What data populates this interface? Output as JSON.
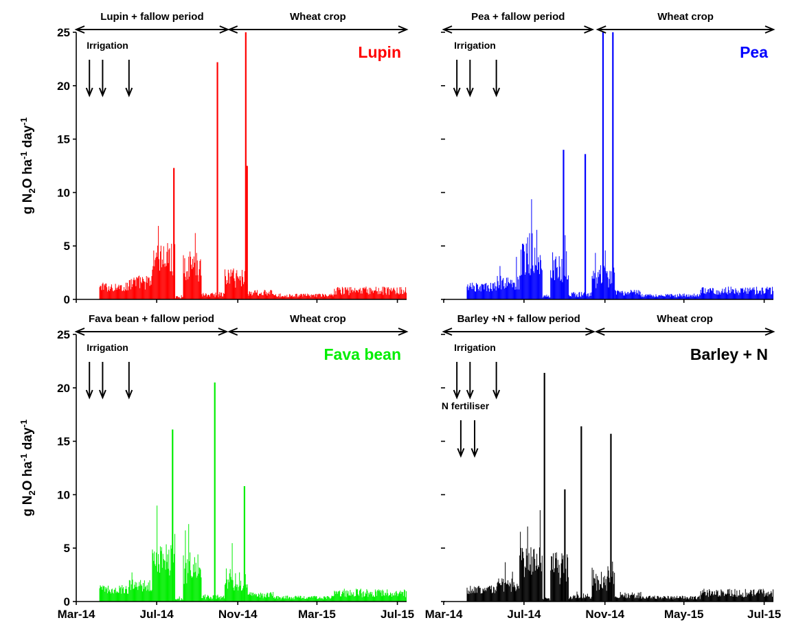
{
  "chart_data": [
    {
      "type": "bar",
      "title": "Lupin",
      "title_color": "#ff0000",
      "series_color": "#ff0000",
      "ylabel": "g N2O ha-1 day-1",
      "ylim": [
        0,
        25
      ],
      "yticks": [
        0,
        5,
        10,
        15,
        20,
        25
      ],
      "xlim": [
        "2014-03-01",
        "2015-07-15"
      ],
      "xticks": [],
      "periods": [
        {
          "label": "Lupin + fallow period",
          "start": "2014-03-01",
          "end": "2014-10-17"
        },
        {
          "label": "Wheat crop",
          "start": "2014-10-19",
          "end": "2015-07-15"
        }
      ],
      "annotations": [
        {
          "label": "Irrigation",
          "dates": [
            "2014-03-21",
            "2014-04-10",
            "2014-05-20"
          ]
        }
      ],
      "peaks": [
        {
          "date": "2014-07-27",
          "value": 12.3
        },
        {
          "date": "2014-10-01",
          "value": 22.2
        },
        {
          "date": "2014-11-13",
          "value": 25.0
        },
        {
          "date": "2014-11-15",
          "value": 12.5
        }
      ]
    },
    {
      "type": "bar",
      "title": "Pea",
      "title_color": "#0000ff",
      "series_color": "#0000ff",
      "ylabel": "",
      "ylim": [
        0,
        25
      ],
      "yticks": [
        0,
        5,
        10,
        15,
        20,
        25
      ],
      "xlim": [
        "2014-03-01",
        "2015-07-15"
      ],
      "xticks": [],
      "periods": [
        {
          "label": "Pea + fallow period",
          "start": "2014-03-01",
          "end": "2014-10-13"
        },
        {
          "label": "Wheat crop",
          "start": "2014-10-21",
          "end": "2015-07-15"
        }
      ],
      "annotations": [
        {
          "label": "Irrigation",
          "dates": [
            "2014-03-21",
            "2014-04-10",
            "2014-05-20"
          ]
        }
      ],
      "peaks": [
        {
          "date": "2014-08-30",
          "value": 14.0
        },
        {
          "date": "2014-10-02",
          "value": 13.6
        },
        {
          "date": "2014-10-29",
          "value": 25.0
        },
        {
          "date": "2014-11-13",
          "value": 25.0
        }
      ]
    },
    {
      "type": "bar",
      "title": "Fava bean",
      "title_color": "#00ee00",
      "series_color": "#00ee00",
      "ylabel": "g N2O ha-1 day-1",
      "ylim": [
        0,
        25
      ],
      "yticks": [
        0,
        5,
        10,
        15,
        20,
        25
      ],
      "xlim": [
        "2014-03-01",
        "2015-07-15"
      ],
      "xticks": [
        "Mar-14",
        "Jul-14",
        "Nov-14",
        "Mar-15",
        "Jul-15"
      ],
      "periods": [
        {
          "label": "Fava bean + fallow period",
          "start": "2014-03-01",
          "end": "2014-10-15"
        },
        {
          "label": "Wheat crop",
          "start": "2014-10-19",
          "end": "2015-07-15"
        }
      ],
      "annotations": [
        {
          "label": "Irrigation",
          "dates": [
            "2014-03-21",
            "2014-04-10",
            "2014-05-20"
          ]
        }
      ],
      "peaks": [
        {
          "date": "2014-07-25",
          "value": 16.1
        },
        {
          "date": "2014-09-27",
          "value": 20.5
        },
        {
          "date": "2014-11-11",
          "value": 10.8
        }
      ]
    },
    {
      "type": "bar",
      "title": "Barley + N",
      "title_color": "#000000",
      "series_color": "#000000",
      "ylabel": "",
      "ylim": [
        0,
        25
      ],
      "yticks": [
        0,
        5,
        10,
        15,
        20,
        25
      ],
      "xlim": [
        "2014-03-01",
        "2015-07-15"
      ],
      "xticks": [
        "Mar-14",
        "Jul-14",
        "Nov-14",
        "May-15",
        "Jul-15"
      ],
      "periods": [
        {
          "label": "Barley +N + fallow period",
          "start": "2014-03-01",
          "end": "2014-10-15"
        },
        {
          "label": "Wheat crop",
          "start": "2014-10-19",
          "end": "2015-07-15"
        }
      ],
      "annotations": [
        {
          "label": "Irrigation",
          "dates": [
            "2014-03-21",
            "2014-04-10",
            "2014-05-20"
          ]
        },
        {
          "label": "N fertiliser",
          "dates": [
            "2014-03-27",
            "2014-04-17"
          ]
        }
      ],
      "peaks": [
        {
          "date": "2014-08-01",
          "value": 21.4
        },
        {
          "date": "2014-09-01",
          "value": 10.5
        },
        {
          "date": "2014-09-26",
          "value": 16.4
        },
        {
          "date": "2014-11-10",
          "value": 15.7
        }
      ]
    }
  ]
}
